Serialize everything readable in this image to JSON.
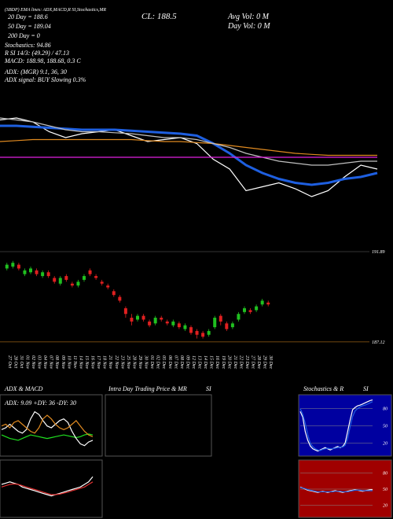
{
  "header": {
    "symbol_line": "(SBDP) EMA lines: ADX,MACD,R SI,Stochastics,MR",
    "ma20": "20 Day = 188.6",
    "ma50": "50 Day = 189.04",
    "ma200": "200 Day = 0",
    "stochastics": "Stochastics: 94.86",
    "rsi": "R SI 14/3: (49.29) / 47.13",
    "macd": "MACD: 188.98, 188.68, 0.3 C",
    "adx": "ADX: (MGR) 9.1, 36, 30",
    "adx_signal": "ADX signal: BUY Slowing 0.3%",
    "close": "CL: 188.5",
    "avg_vol": "Avg Vol: 0 M",
    "day_vol": "Day Vol: 0 M"
  },
  "chart_data": [
    {
      "type": "line",
      "ylim": [
        186,
        191
      ],
      "series": [
        {
          "name": "Price",
          "color": "#ffffff",
          "values": [
            190.5,
            190.6,
            190.4,
            189.9,
            189.6,
            189.8,
            189.9,
            190.0,
            189.7,
            189.4,
            189.5,
            189.6,
            189.3,
            188.5,
            188.0,
            186.9,
            187.1,
            187.3,
            187.0,
            186.6,
            186.9,
            187.6,
            188.2,
            188.0
          ]
        },
        {
          "name": "EMA 20",
          "color": "#1e5fe0",
          "values": [
            190.2,
            190.2,
            190.15,
            190.1,
            190.05,
            190.0,
            190.0,
            190.0,
            189.95,
            189.9,
            189.85,
            189.8,
            189.7,
            189.3,
            188.8,
            188.2,
            187.8,
            187.5,
            187.3,
            187.2,
            187.3,
            187.5,
            187.6,
            187.8
          ]
        },
        {
          "name": "EMA 50",
          "color": "#e08a20",
          "values": [
            189.4,
            189.45,
            189.5,
            189.5,
            189.5,
            189.5,
            189.5,
            189.5,
            189.5,
            189.45,
            189.4,
            189.4,
            189.35,
            189.3,
            189.2,
            189.1,
            189.0,
            188.9,
            188.8,
            188.75,
            188.7,
            188.7,
            188.7,
            188.7
          ]
        },
        {
          "name": "EMA 100",
          "color": "#c0c0c0",
          "values": [
            190.6,
            190.5,
            190.4,
            190.2,
            190.0,
            189.9,
            189.9,
            189.85,
            189.8,
            189.7,
            189.6,
            189.6,
            189.5,
            189.3,
            189.1,
            188.8,
            188.6,
            188.4,
            188.3,
            188.2,
            188.2,
            188.3,
            188.4,
            188.4
          ]
        },
        {
          "name": "EMA 200",
          "color": "#e020e0",
          "values": [
            188.6,
            188.6,
            188.6,
            188.6,
            188.6,
            188.6,
            188.6,
            188.6,
            188.6,
            188.6,
            188.6,
            188.6,
            188.6,
            188.6,
            188.6,
            188.6,
            188.6,
            188.6,
            188.6,
            188.6,
            188.6,
            188.6,
            188.6,
            188.6
          ]
        }
      ]
    },
    {
      "type": "candlestick",
      "ylim": [
        186.7,
        192.72
      ],
      "yticks": [
        191.89,
        187.12
      ],
      "categories": [
        "27 Oct",
        "28 Oct",
        "31 Oct",
        "01 Nov",
        "02 Nov",
        "03 Nov",
        "04 Nov",
        "07 Nov",
        "08 Nov",
        "09 Nov",
        "10 Nov",
        "11 Nov",
        "14 Nov",
        "15 Nov",
        "16 Nov",
        "17 Nov",
        "18 Nov",
        "21 Nov",
        "22 Nov",
        "23 Nov",
        "25 Nov",
        "28 Nov",
        "29 Nov",
        "30 Nov",
        "01 Dec",
        "02 Dec",
        "05 Dec",
        "06 Dec",
        "07 Dec",
        "08 Dec",
        "09 Dec",
        "12 Dec",
        "13 Dec",
        "14 Dec",
        "15 Dec",
        "16 Dec",
        "19 Dec",
        "20 Dec",
        "21 Dec",
        "22 Dec",
        "23 Dec",
        "27 Dec",
        "28 Dec",
        "29 Dec",
        "30 Dec"
      ],
      "open": [
        191.0,
        191.1,
        191.2,
        190.7,
        190.8,
        190.9,
        190.6,
        190.8,
        190.5,
        190.2,
        190.6,
        190.2,
        190.1,
        190.4,
        190.9,
        190.6,
        190.3,
        190.1,
        189.8,
        189.5,
        188.9,
        188.4,
        188.3,
        188.5,
        188.2,
        188.1,
        188.4,
        188.2,
        188.0,
        188.1,
        187.8,
        187.9,
        187.7,
        187.6,
        187.5,
        187.9,
        188.5,
        188.1,
        187.9,
        188.3,
        188.7,
        188.8,
        188.8,
        189.1,
        189.2
      ],
      "close": [
        191.2,
        191.3,
        191.0,
        190.9,
        191.0,
        190.7,
        190.8,
        190.6,
        190.3,
        190.5,
        190.4,
        190.1,
        190.3,
        190.6,
        190.7,
        190.5,
        190.2,
        190.0,
        189.6,
        189.3,
        188.6,
        188.2,
        188.5,
        188.3,
        188.0,
        188.4,
        188.3,
        188.1,
        188.2,
        187.9,
        188.0,
        187.6,
        187.5,
        187.4,
        187.7,
        188.4,
        188.2,
        187.8,
        188.1,
        188.6,
        188.9,
        188.7,
        189.0,
        189.3,
        189.1
      ],
      "high": [
        191.3,
        191.4,
        191.3,
        191.0,
        191.1,
        191.0,
        190.9,
        190.9,
        190.6,
        190.6,
        190.7,
        190.3,
        190.4,
        190.7,
        191.0,
        190.7,
        190.4,
        190.2,
        189.9,
        189.6,
        189.0,
        188.6,
        188.6,
        188.6,
        188.3,
        188.5,
        188.5,
        188.3,
        188.3,
        188.2,
        188.1,
        188.0,
        187.8,
        187.7,
        187.8,
        188.5,
        188.6,
        188.2,
        188.2,
        188.7,
        189.0,
        188.9,
        189.1,
        189.4,
        189.3
      ],
      "low": [
        190.9,
        191.0,
        190.9,
        190.6,
        190.7,
        190.6,
        190.5,
        190.5,
        190.2,
        190.1,
        190.3,
        190.0,
        190.0,
        190.3,
        190.6,
        190.4,
        190.1,
        189.9,
        189.5,
        189.2,
        188.4,
        188.0,
        188.2,
        188.2,
        187.9,
        188.0,
        188.2,
        188.0,
        187.9,
        187.8,
        187.7,
        187.5,
        187.3,
        187.3,
        187.4,
        187.8,
        188.0,
        187.7,
        187.8,
        188.2,
        188.6,
        188.6,
        188.7,
        189.0,
        189.0
      ]
    },
    {
      "type": "line",
      "title": "ADX & MACD",
      "subtitle": "ADX: 9.09 +DY: 36 -DY: 30",
      "ylim": [
        0,
        60
      ],
      "series": [
        {
          "name": "ADX",
          "color": "#20e020",
          "values": [
            22,
            20,
            18,
            17,
            16,
            18,
            20,
            22,
            21,
            20,
            19,
            18,
            19,
            20,
            21,
            22,
            21,
            20,
            19,
            20,
            22,
            23,
            22
          ]
        },
        {
          "name": "+DY",
          "color": "#ffffff",
          "values": [
            28,
            30,
            34,
            30,
            26,
            24,
            28,
            40,
            48,
            45,
            38,
            32,
            30,
            34,
            38,
            40,
            36,
            26,
            18,
            12,
            10,
            14,
            16
          ]
        },
        {
          "name": "-DY",
          "color": "#e08a20",
          "values": [
            32,
            34,
            30,
            36,
            38,
            34,
            30,
            26,
            24,
            30,
            40,
            44,
            40,
            34,
            30,
            28,
            30,
            34,
            38,
            32,
            26,
            22,
            20
          ]
        }
      ]
    },
    {
      "type": "line",
      "ylim": [
        -1,
        1
      ],
      "series": [
        {
          "name": "MACD",
          "color": "#ffffff",
          "values": [
            0.2,
            0.25,
            0.3,
            0.25,
            0.2,
            0.1,
            0.05,
            0.0,
            -0.05,
            -0.1,
            -0.15,
            -0.2,
            -0.25,
            -0.2,
            -0.15,
            -0.1,
            -0.05,
            0.0,
            0.05,
            0.1,
            0.2,
            0.3,
            0.5
          ]
        },
        {
          "name": "Signal",
          "color": "#e03030",
          "values": [
            0.1,
            0.15,
            0.2,
            0.22,
            0.2,
            0.15,
            0.1,
            0.05,
            0.0,
            -0.05,
            -0.1,
            -0.15,
            -0.2,
            -0.2,
            -0.18,
            -0.14,
            -0.1,
            -0.05,
            0.0,
            0.05,
            0.1,
            0.2,
            0.3
          ]
        }
      ]
    },
    {
      "type": "line",
      "title": "Stochastics & R",
      "title2": "SI",
      "ylim": [
        0,
        100
      ],
      "yticks": [
        80,
        50,
        20
      ],
      "series": [
        {
          "name": "%K",
          "color": "#ffffff",
          "values": [
            75,
            65,
            40,
            25,
            15,
            10,
            8,
            6,
            8,
            10,
            12,
            10,
            8,
            10,
            12,
            14,
            12,
            14,
            20,
            40,
            60,
            78,
            82,
            85,
            86,
            88,
            90,
            92,
            94,
            95
          ]
        },
        {
          "name": "%D",
          "color": "#1e5fe0",
          "values": [
            80,
            70,
            55,
            35,
            20,
            14,
            10,
            8,
            7,
            9,
            10,
            11,
            10,
            10,
            11,
            12,
            13,
            13,
            16,
            28,
            48,
            66,
            76,
            80,
            83,
            85,
            86,
            88,
            90,
            92
          ]
        }
      ]
    },
    {
      "type": "line",
      "ylim": [
        0,
        100
      ],
      "yticks": [
        80,
        50,
        20
      ],
      "series": [
        {
          "name": "RSI",
          "color": "#ffffff",
          "values": [
            54,
            52,
            50,
            48,
            47,
            46,
            45,
            44,
            45,
            46,
            45,
            44,
            45,
            46,
            47,
            46,
            45,
            44,
            45,
            46,
            47,
            48,
            49,
            48,
            47,
            46,
            47,
            48,
            49,
            49
          ]
        },
        {
          "name": "RSI signal",
          "color": "#1e5fe0",
          "values": [
            53,
            52,
            51,
            49,
            48,
            47,
            46,
            45,
            45,
            45,
            45,
            45,
            45,
            45,
            46,
            46,
            46,
            45,
            45,
            45,
            46,
            47,
            48,
            48,
            48,
            47,
            47,
            47,
            47,
            47
          ]
        }
      ]
    }
  ],
  "panel_titles": {
    "intraday": "Intra Day Trading Price & MR",
    "intraday2": "SI"
  }
}
